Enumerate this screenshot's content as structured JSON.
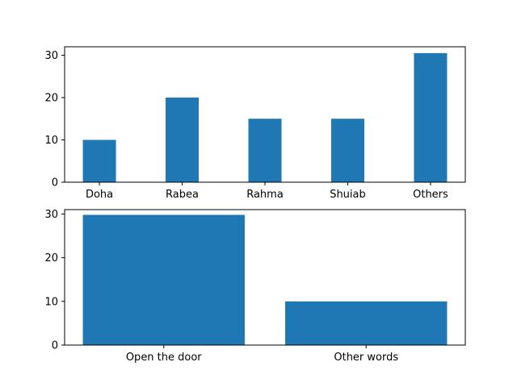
{
  "chart_data": [
    {
      "type": "bar",
      "categories": [
        "Doha",
        "Rabea",
        "Rahma",
        "Shuiab",
        "Others"
      ],
      "values": [
        10,
        20,
        15,
        15,
        30.5
      ],
      "yticks": [
        "0",
        "10",
        "20",
        "30"
      ],
      "ylim": [
        0,
        32
      ],
      "title": "",
      "xlabel": "",
      "ylabel": "",
      "grid": false,
      "bar_color": "#1f77b4"
    },
    {
      "type": "bar",
      "categories": [
        "Open the door",
        "Other words"
      ],
      "values": [
        29.8,
        10
      ],
      "yticks": [
        "0",
        "10",
        "20",
        "30"
      ],
      "ylim": [
        0,
        31
      ],
      "title": "",
      "xlabel": "",
      "ylabel": "",
      "grid": false,
      "bar_color": "#1f77b4"
    }
  ]
}
